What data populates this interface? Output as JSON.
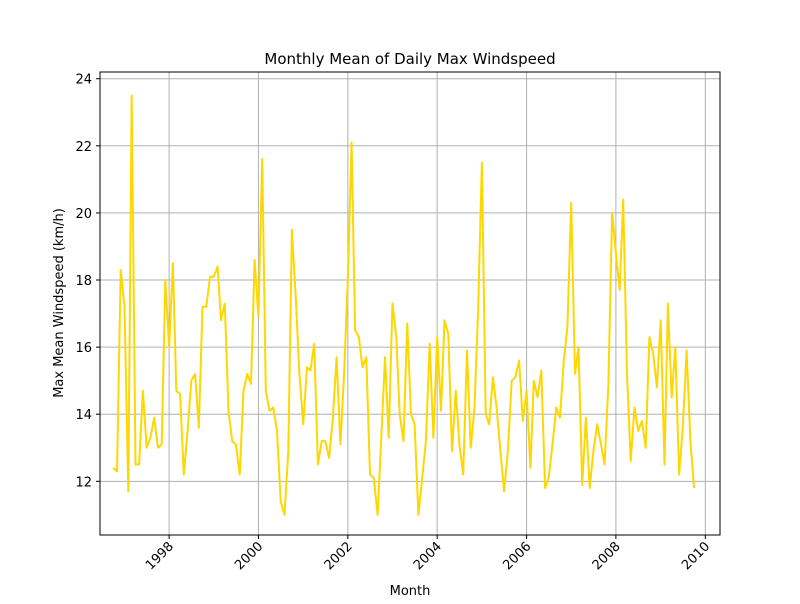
{
  "chart_data": {
    "type": "line",
    "title": "Monthly Mean of Daily Max Windspeed",
    "xlabel": "Month",
    "ylabel": "Max Mean Windspeed (km/h)",
    "xlim": [
      "1996-06-15",
      "2010-05-01"
    ],
    "ylim": [
      10.4,
      24.2
    ],
    "x_ticks": [
      "1998",
      "2000",
      "2002",
      "2004",
      "2006",
      "2008",
      "2010"
    ],
    "y_ticks": [
      12,
      14,
      16,
      18,
      20,
      22,
      24
    ],
    "grid": true,
    "line_color": "#ffd700",
    "series": [
      {
        "x": [
          "1996-10",
          "1996-11",
          "1996-12",
          "1997-01",
          "1997-02",
          "1997-03",
          "1997-04",
          "1997-05",
          "1997-06",
          "1997-07",
          "1997-08",
          "1997-09",
          "1997-10",
          "1997-11",
          "1997-12",
          "1998-01",
          "1998-02",
          "1998-03",
          "1998-04",
          "1998-05",
          "1998-06",
          "1998-07",
          "1998-08",
          "1998-09",
          "1998-10",
          "1998-11",
          "1998-12",
          "1999-01",
          "1999-02",
          "1999-03",
          "1999-04",
          "1999-05",
          "1999-06",
          "1999-07",
          "1999-08",
          "1999-09",
          "1999-10",
          "1999-11",
          "1999-12",
          "2000-01",
          "2000-02",
          "2000-03",
          "2000-04",
          "2000-05",
          "2000-06",
          "2000-07",
          "2000-08",
          "2000-09",
          "2000-10",
          "2000-11",
          "2000-12",
          "2001-01",
          "2001-02",
          "2001-03",
          "2001-04",
          "2001-05",
          "2001-06",
          "2001-07",
          "2001-08",
          "2001-09",
          "2001-10",
          "2001-11",
          "2001-12",
          "2002-01",
          "2002-02",
          "2002-03",
          "2002-04",
          "2002-05",
          "2002-06",
          "2002-07",
          "2002-08",
          "2002-09",
          "2002-10",
          "2002-11",
          "2002-12",
          "2003-01",
          "2003-02",
          "2003-03",
          "2003-04",
          "2003-05",
          "2003-06",
          "2003-07",
          "2003-08",
          "2003-09",
          "2003-10",
          "2003-11",
          "2003-12",
          "2004-01",
          "2004-02",
          "2004-03",
          "2004-04",
          "2004-05",
          "2004-06",
          "2004-07",
          "2004-08",
          "2004-09",
          "2004-10",
          "2004-11",
          "2004-12",
          "2005-01",
          "2005-02",
          "2005-03",
          "2005-04",
          "2005-05",
          "2005-06",
          "2005-07",
          "2005-08",
          "2005-09",
          "2005-10",
          "2005-11",
          "2005-12",
          "2006-01",
          "2006-02",
          "2006-03",
          "2006-04",
          "2006-05",
          "2006-06",
          "2006-07",
          "2006-08",
          "2006-09",
          "2006-10",
          "2006-11",
          "2006-12",
          "2007-01",
          "2007-02",
          "2007-03",
          "2007-04",
          "2007-05",
          "2007-06",
          "2007-07",
          "2007-08",
          "2007-09",
          "2007-10",
          "2007-11",
          "2007-12",
          "2008-01",
          "2008-02",
          "2008-03",
          "2008-04",
          "2008-05",
          "2008-06",
          "2008-07",
          "2008-08",
          "2008-09",
          "2008-10",
          "2008-11",
          "2008-12",
          "2009-01",
          "2009-02",
          "2009-03",
          "2009-04",
          "2009-05",
          "2009-06",
          "2009-07",
          "2009-08",
          "2009-09",
          "2009-10"
        ],
        "values": [
          12.4,
          12.3,
          18.3,
          17.2,
          11.7,
          23.5,
          12.5,
          12.5,
          14.7,
          13.0,
          13.3,
          13.9,
          13.0,
          13.1,
          18.0,
          16.0,
          18.5,
          14.7,
          14.6,
          12.2,
          13.5,
          15.0,
          15.2,
          13.6,
          17.2,
          17.2,
          18.1,
          18.1,
          18.4,
          16.8,
          17.3,
          14.1,
          13.2,
          13.1,
          12.2,
          14.7,
          15.2,
          14.9,
          18.6,
          16.9,
          21.6,
          14.7,
          14.1,
          14.2,
          13.5,
          11.4,
          11.0,
          12.9,
          19.5,
          17.5,
          15.2,
          13.7,
          15.4,
          15.3,
          16.1,
          12.5,
          13.2,
          13.2,
          12.7,
          13.9,
          15.7,
          13.1,
          15.2,
          18.1,
          22.1,
          16.5,
          16.3,
          15.4,
          15.7,
          12.2,
          12.1,
          11.0,
          13.3,
          15.7,
          13.3,
          17.3,
          16.3,
          14.0,
          13.2,
          16.7,
          14.0,
          13.7,
          11.0,
          12.1,
          13.2,
          16.1,
          13.3,
          16.3,
          14.1,
          16.8,
          16.4,
          12.9,
          14.7,
          13.1,
          12.2,
          15.9,
          13.0,
          14.2,
          17.1,
          21.5,
          14.0,
          13.7,
          15.1,
          14.2,
          12.9,
          11.7,
          12.9,
          15.0,
          15.1,
          15.6,
          13.8,
          14.7,
          12.4,
          15.0,
          14.5,
          15.3,
          11.8,
          12.1,
          13.1,
          14.2,
          13.9,
          15.6,
          16.6,
          20.3,
          15.2,
          16.0,
          11.9,
          13.9,
          11.8,
          12.9,
          13.7,
          13.1,
          12.5,
          14.9,
          20.0,
          18.8,
          17.7,
          20.4,
          15.2,
          12.6,
          14.2,
          13.5,
          13.8,
          13.0,
          16.3,
          15.8,
          14.8,
          16.8,
          12.5,
          17.3,
          14.5,
          16.0,
          12.2,
          13.6,
          15.9,
          13.2,
          11.8
        ]
      }
    ]
  }
}
